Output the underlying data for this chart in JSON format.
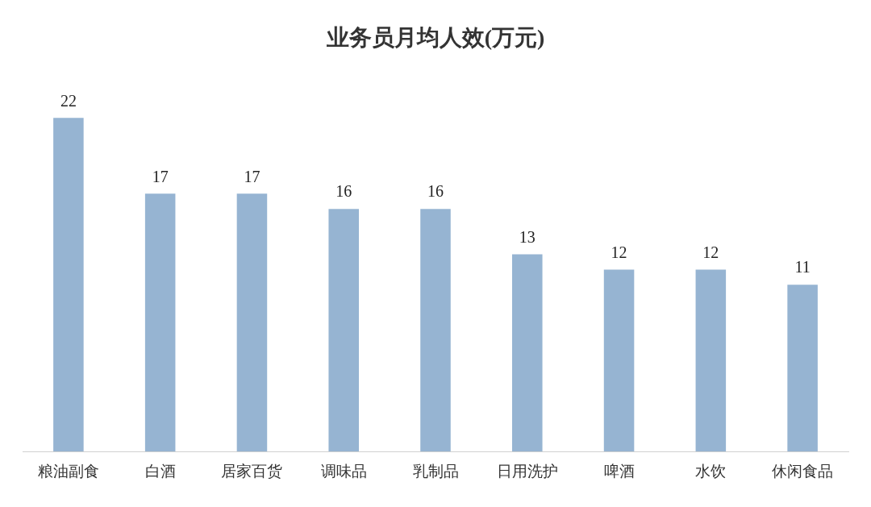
{
  "chart_data": {
    "type": "bar",
    "title": "业务员月均人效(万元)",
    "categories": [
      "粮油副食",
      "白酒",
      "居家百货",
      "调味品",
      "乳制品",
      "日用洗护",
      "啤酒",
      "水饮",
      "休闲食品"
    ],
    "values": [
      22,
      17,
      17,
      16,
      16,
      13,
      12,
      12,
      11
    ],
    "color": "#96b4d2",
    "data_labels": true,
    "grid": false,
    "legend": false
  }
}
